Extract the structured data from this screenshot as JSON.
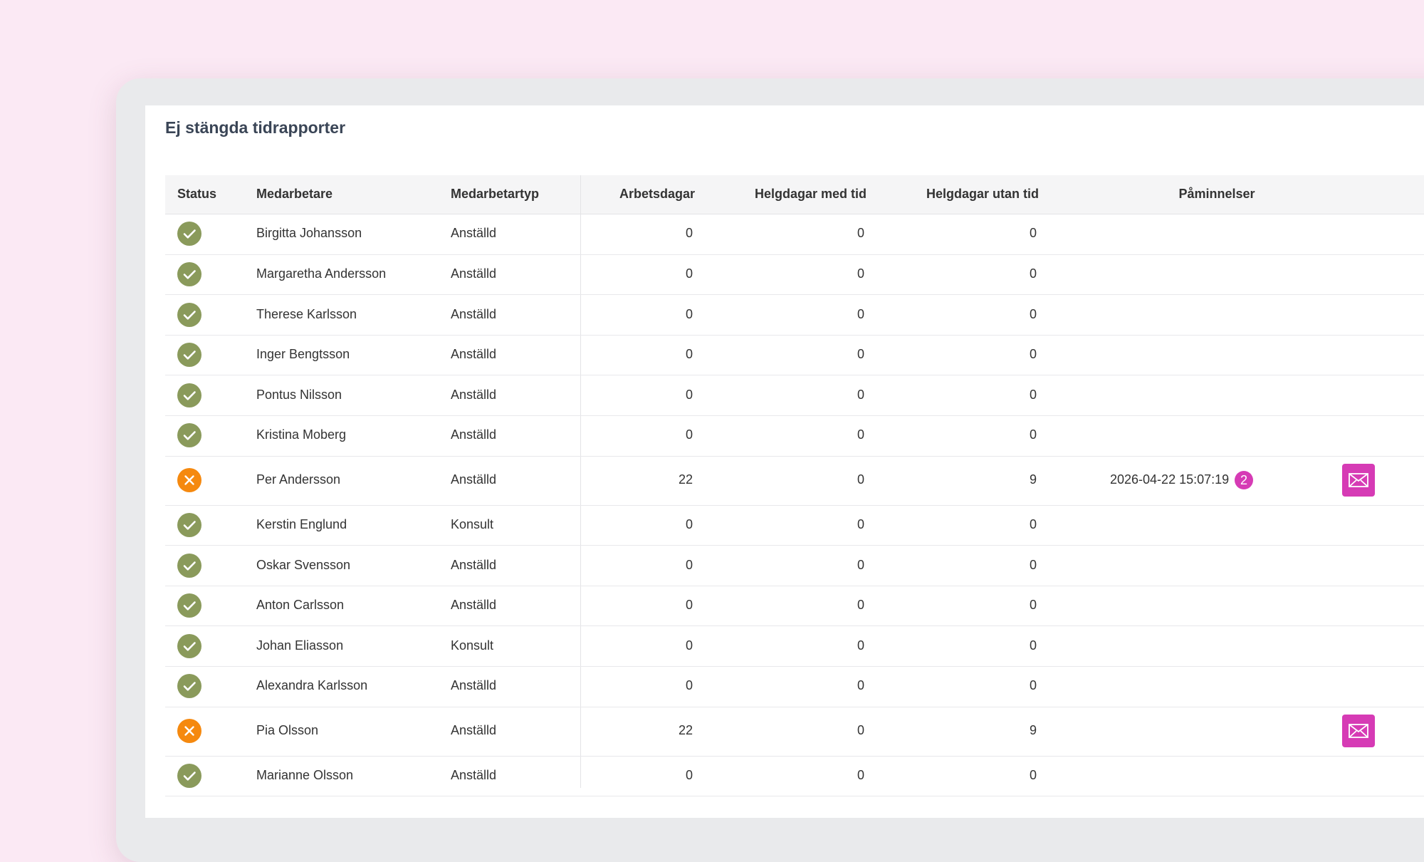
{
  "title": "Ej stängda tidrapporter",
  "table": {
    "columns": [
      "Status",
      "Medarbetare",
      "Medarbetartyp",
      "Arbetsdagar",
      "Helgdagar med tid",
      "Helgdagar utan tid",
      "Påminnelser"
    ],
    "rows": [
      {
        "cells": [
          "Birgitta Johansson",
          "Anställd",
          0,
          0,
          0
        ],
        "closed": true
      },
      {
        "cells": [
          "Margaretha Andersson",
          "Anställd",
          0,
          0,
          0
        ],
        "closed": true
      },
      {
        "cells": [
          "Therese Karlsson",
          "Anställd",
          0,
          0,
          0
        ],
        "closed": true
      },
      {
        "cells": [
          "Inger Bengtsson",
          "Anställd",
          0,
          0,
          0
        ],
        "closed": true
      },
      {
        "cells": [
          "Pontus Nilsson",
          "Anställd",
          0,
          0,
          0
        ],
        "closed": true
      },
      {
        "cells": [
          "Kristina Moberg",
          "Anställd",
          0,
          0,
          0
        ],
        "closed": true
      },
      {
        "cells": [
          "Per Andersson",
          "Anställd",
          22,
          0,
          9
        ],
        "closed": false,
        "reminder": {
          "date": "2026-04-22 15:07:19",
          "count": 2
        }
      },
      {
        "cells": [
          "Kerstin Englund",
          "Konsult",
          0,
          0,
          0
        ],
        "closed": true
      },
      {
        "cells": [
          "Oskar Svensson",
          "Anställd",
          0,
          0,
          0
        ],
        "closed": true
      },
      {
        "cells": [
          "Anton Carlsson",
          "Anställd",
          0,
          0,
          0
        ],
        "closed": true
      },
      {
        "cells": [
          "Johan Eliasson",
          "Konsult",
          0,
          0,
          0
        ],
        "closed": true
      },
      {
        "cells": [
          "Alexandra Karlsson",
          "Anställd",
          0,
          0,
          0
        ],
        "closed": true
      },
      {
        "cells": [
          "Pia Olsson",
          "Anställd",
          22,
          0,
          9
        ],
        "closed": false
      },
      {
        "cells": [
          "Marianne Olsson",
          "Anställd",
          0,
          0,
          0
        ],
        "closed": true
      }
    ]
  }
}
